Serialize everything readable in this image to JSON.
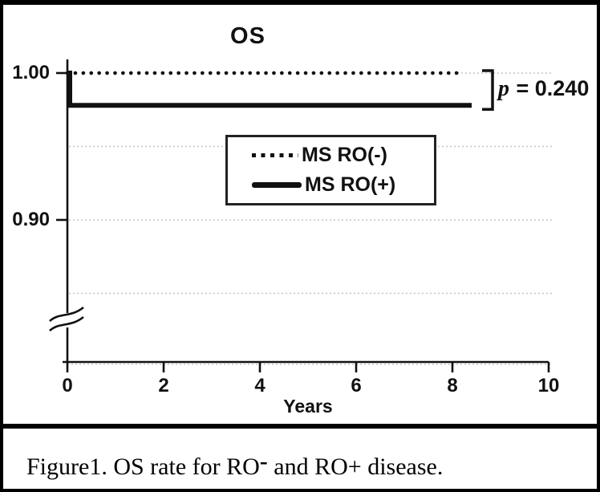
{
  "figure": {
    "caption_prefix": "Figure1. OS rate for RO",
    "caption_sup": "-",
    "caption_suffix": " and RO+ disease."
  },
  "chart_data": {
    "type": "line",
    "subtype": "kaplan-meier-step",
    "title": "OS",
    "xlabel": "Years",
    "xlim": [
      0,
      10
    ],
    "x_ticks": [
      0,
      2,
      4,
      6,
      8,
      10
    ],
    "y_ticks": [
      {
        "value": 1.0,
        "label": "1.00"
      },
      {
        "value": 0.9,
        "label": "0.90"
      }
    ],
    "gridline_values": [
      1.0,
      0.95,
      0.9,
      0.85
    ],
    "y_axis_break": true,
    "grid": "dotted-horizontal",
    "legend_position": "center",
    "series": [
      {
        "name": "MS RO(-)",
        "style": "dotted",
        "points": [
          [
            0,
            1.0
          ],
          [
            8.1,
            1.0
          ]
        ]
      },
      {
        "name": "MS RO(+)",
        "style": "solid",
        "points": [
          [
            0,
            1.0
          ],
          [
            0.05,
            1.0
          ],
          [
            0.05,
            0.978
          ],
          [
            8.4,
            0.978
          ]
        ]
      }
    ],
    "annotation": {
      "italic": "p",
      "text": " = 0.240"
    },
    "legend": {
      "items": [
        {
          "label": "MS RO(-)",
          "style": "dotted"
        },
        {
          "label": "MS RO(+)",
          "style": "solid"
        }
      ]
    },
    "colors": {
      "line": "#111111",
      "grid": "#c6c6c6",
      "background": "#ffffff",
      "border": "#000000"
    }
  }
}
